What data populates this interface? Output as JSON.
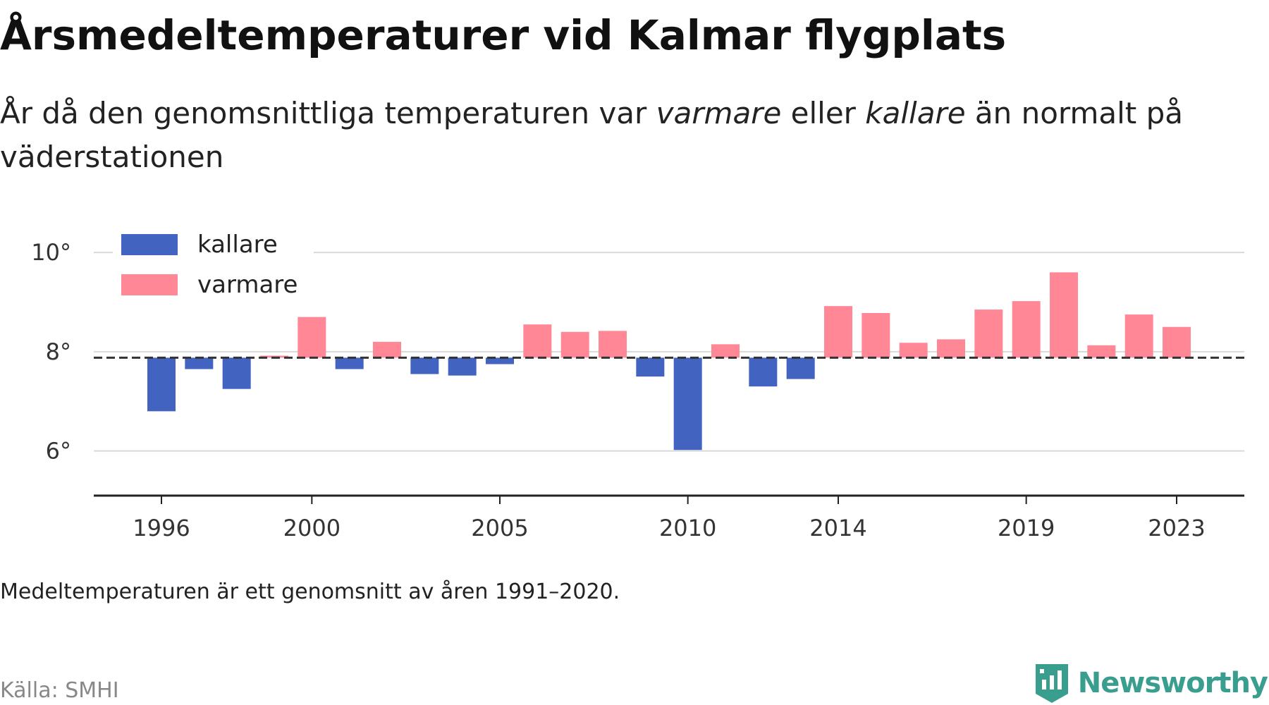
{
  "header": {
    "title": "Årsmedeltemperaturer vid Kalmar flygplats",
    "subtitle_part1": "År då den genomsnittliga temperaturen var ",
    "subtitle_em1": "varmare",
    "subtitle_part2": " eller ",
    "subtitle_em2": "kallare",
    "subtitle_part3": " än normalt på väderstationen"
  },
  "footer": {
    "note": "Medeltemperaturen är ett genomsnitt av åren 1991–2020.",
    "source": "Källa: SMHI",
    "brand": "Newsworthy"
  },
  "colors": {
    "cold": "#4263c0",
    "warm": "#ff8796",
    "grid": "#d9d9d9",
    "axis": "#222222",
    "brand": "#3a9e8f"
  },
  "chart_data": {
    "type": "bar",
    "baseline": 7.88,
    "baseline_style": "dashed",
    "ylim": [
      5.1,
      10.4
    ],
    "yticks": [
      6,
      8,
      10
    ],
    "ytick_labels": [
      "6°",
      "8°",
      "10°"
    ],
    "xticks": [
      1996,
      2000,
      2005,
      2010,
      2014,
      2019,
      2023
    ],
    "xtick_labels": [
      "1996",
      "2000",
      "2005",
      "2010",
      "2014",
      "2019",
      "2023"
    ],
    "grid": true,
    "legend": {
      "position": "top-left",
      "entries": [
        {
          "label": "kallare",
          "color": "#4263c0"
        },
        {
          "label": "varmare",
          "color": "#ff8796"
        }
      ]
    },
    "years": [
      1996,
      1997,
      1998,
      1999,
      2000,
      2001,
      2002,
      2003,
      2004,
      2005,
      2006,
      2007,
      2008,
      2009,
      2010,
      2011,
      2012,
      2013,
      2014,
      2015,
      2016,
      2017,
      2018,
      2019,
      2020,
      2021,
      2022,
      2023
    ],
    "values": [
      6.8,
      7.65,
      7.25,
      7.92,
      8.7,
      7.65,
      8.2,
      7.55,
      7.52,
      7.75,
      8.55,
      8.4,
      8.42,
      7.5,
      6.02,
      8.15,
      7.3,
      7.45,
      8.92,
      8.78,
      8.18,
      8.25,
      8.85,
      9.02,
      9.6,
      8.13,
      8.75,
      8.5
    ],
    "xlabel": "",
    "ylabel": ""
  }
}
